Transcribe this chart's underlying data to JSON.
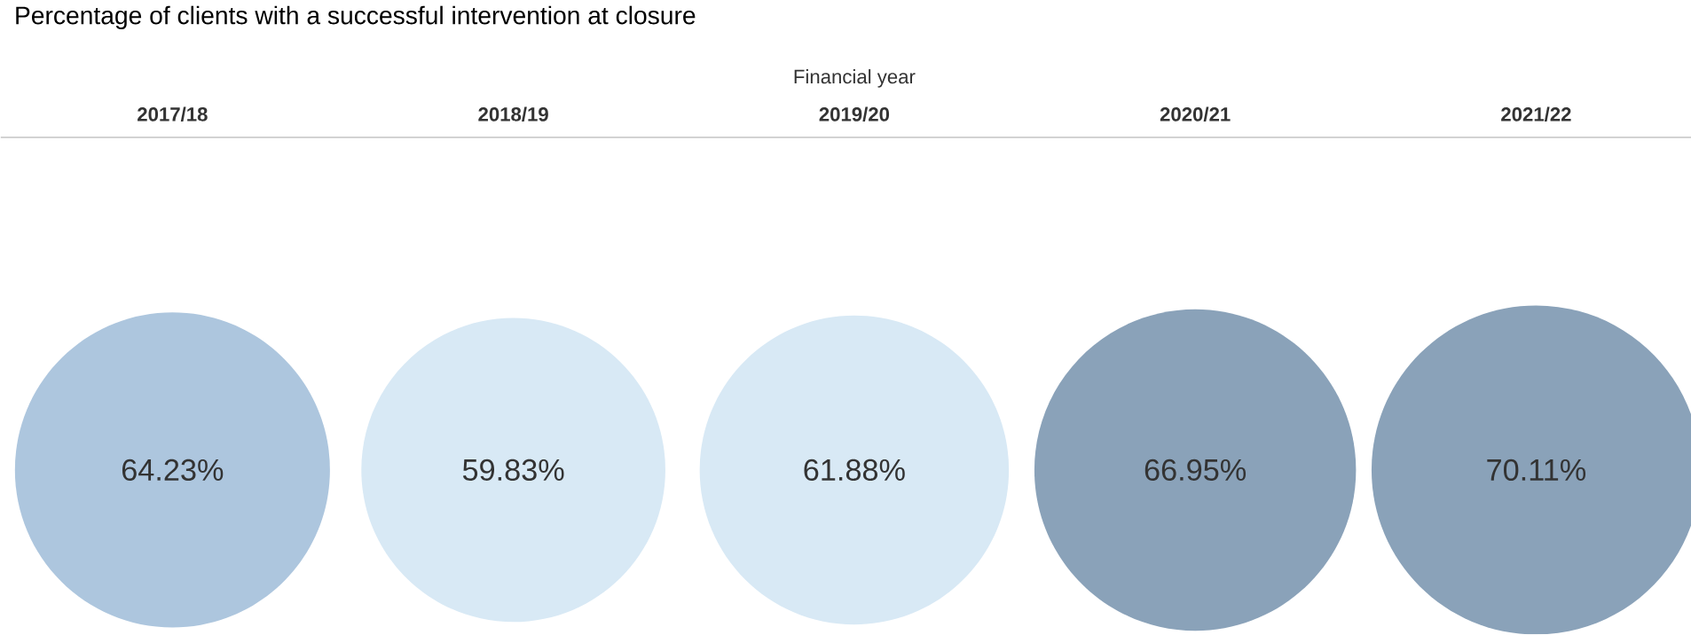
{
  "chart_data": {
    "type": "other",
    "title": "Percentage of clients with a successful intervention at closure",
    "xlabel": "Financial year",
    "categories": [
      "2017/18",
      "2018/19",
      "2019/20",
      "2020/21",
      "2021/22"
    ],
    "values": [
      64.23,
      59.83,
      61.88,
      66.95,
      70.11
    ],
    "value_labels": [
      "64.23%",
      "59.83%",
      "61.88%",
      "66.95%",
      "70.11%"
    ],
    "colors": [
      "#adc6de",
      "#d8e9f5",
      "#d8e9f5",
      "#8aa2b9",
      "#8aa2b9"
    ]
  }
}
